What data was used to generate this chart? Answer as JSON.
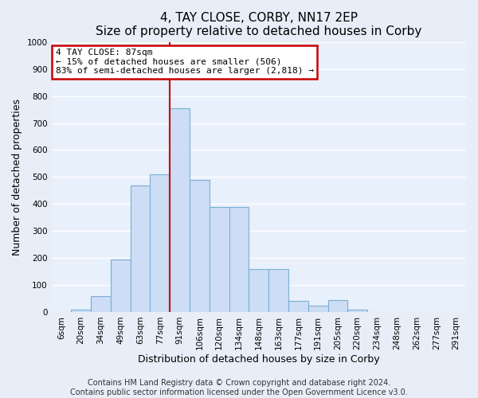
{
  "title": "4, TAY CLOSE, CORBY, NN17 2EP",
  "subtitle": "Size of property relative to detached houses in Corby",
  "xlabel": "Distribution of detached houses by size in Corby",
  "ylabel": "Number of detached properties",
  "bar_labels": [
    "6sqm",
    "20sqm",
    "34sqm",
    "49sqm",
    "63sqm",
    "77sqm",
    "91sqm",
    "106sqm",
    "120sqm",
    "134sqm",
    "148sqm",
    "163sqm",
    "177sqm",
    "191sqm",
    "205sqm",
    "220sqm",
    "234sqm",
    "248sqm",
    "262sqm",
    "277sqm",
    "291sqm"
  ],
  "bar_values": [
    0,
    10,
    60,
    195,
    470,
    510,
    755,
    490,
    390,
    390,
    160,
    160,
    42,
    22,
    44,
    10,
    0,
    0,
    0,
    0,
    0
  ],
  "bar_color": "#ccddf5",
  "bar_edge_color": "#7aafd4",
  "vline_x": 6.0,
  "vline_color": "#cc0000",
  "annotation_title": "4 TAY CLOSE: 87sqm",
  "annotation_line1": "← 15% of detached houses are smaller (506)",
  "annotation_line2": "83% of semi-detached houses are larger (2,818) →",
  "annotation_box_color": "white",
  "annotation_box_edge_color": "#cc0000",
  "ylim": [
    0,
    1000
  ],
  "yticks": [
    0,
    100,
    200,
    300,
    400,
    500,
    600,
    700,
    800,
    900,
    1000
  ],
  "footer1": "Contains HM Land Registry data © Crown copyright and database right 2024.",
  "footer2": "Contains public sector information licensed under the Open Government Licence v3.0.",
  "background_color": "#e8eef8",
  "plot_background_color": "#e8f0fc",
  "title_fontsize": 11,
  "axis_label_fontsize": 9,
  "tick_fontsize": 7.5,
  "annotation_fontsize": 8,
  "footer_fontsize": 7
}
